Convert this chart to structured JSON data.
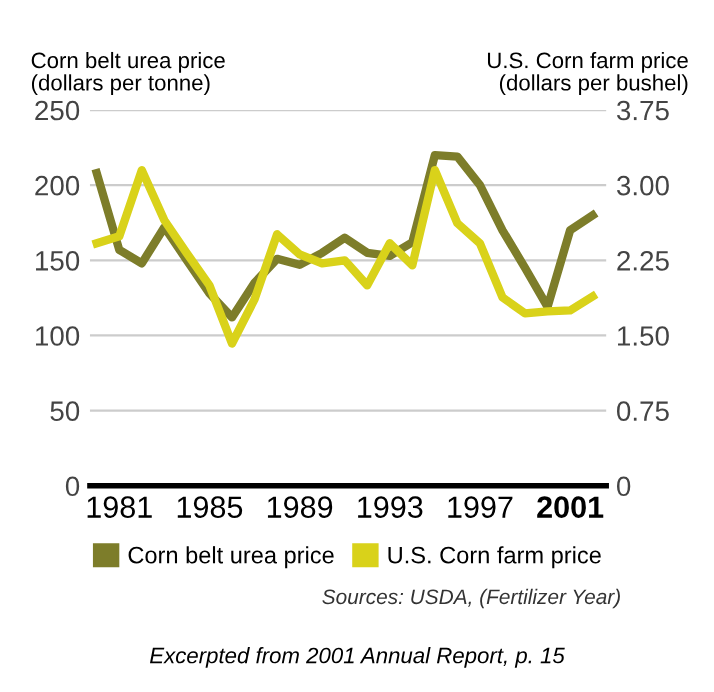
{
  "chart_data": {
    "type": "line",
    "x": [
      1980,
      1981,
      1982,
      1983,
      1984,
      1985,
      1986,
      1987,
      1988,
      1989,
      1990,
      1991,
      1992,
      1993,
      1994,
      1995,
      1996,
      1997,
      1998,
      1999,
      2000,
      2001,
      2002
    ],
    "series": [
      {
        "name": "Corn belt urea price",
        "color": "#7d7d2a",
        "values": [
          208,
          157,
          148,
          172,
          150,
          128,
          112,
          135,
          151,
          147,
          155,
          165,
          155,
          153,
          162,
          220,
          219,
          200,
          170,
          145,
          119,
          170,
          180
        ]
      },
      {
        "name": "U.S. Corn farm price",
        "color": "#d9d21a",
        "axis": "y2",
        "values": [
          2.42,
          2.49,
          3.15,
          2.65,
          2.32,
          2.0,
          1.42,
          1.86,
          2.51,
          2.31,
          2.22,
          2.25,
          2.0,
          2.42,
          2.2,
          3.15,
          2.62,
          2.42,
          1.88,
          1.72,
          1.74,
          1.75,
          1.89
        ]
      }
    ],
    "ylabel": "Corn belt urea price\n(dollars per tonne)",
    "y2label": "U.S. Corn farm price\n(dollars per bushel)",
    "xlim": [
      1979.7,
      2002.6
    ],
    "xticks": [
      1981,
      1985,
      1989,
      1993,
      1997,
      2001
    ],
    "ylim": [
      0,
      250
    ],
    "yticks": [
      0,
      50,
      100,
      150,
      200,
      250
    ],
    "y2lim": [
      0,
      3.75
    ],
    "y2ticks": [
      0,
      {
        "value": 0.75,
        "label": "0.75"
      },
      {
        "value": 1.5,
        "label": "1.50"
      },
      {
        "value": 2.25,
        "label": "2.25"
      },
      {
        "value": 3.0,
        "label": "3.00"
      },
      {
        "value": 3.75,
        "label": "3.75"
      }
    ],
    "grid": "y",
    "legend": "bottom",
    "marker": "none",
    "line_style": "solid",
    "annotations": [
      "Sources: USDA, (Fertilizer Year)",
      "Excerpted from 2001 Annual Report, p. 15"
    ]
  }
}
